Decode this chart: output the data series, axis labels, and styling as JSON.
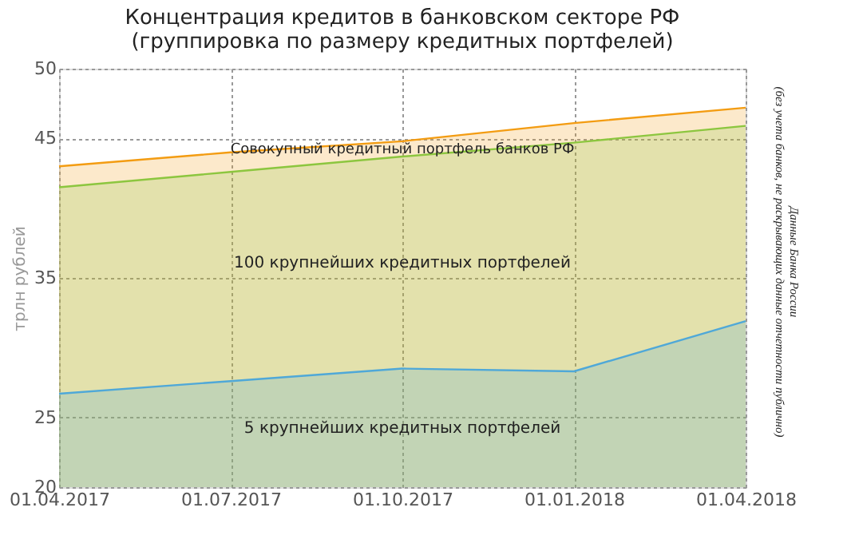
{
  "chart_data": {
    "type": "area",
    "title": "Концентрация кредитов в банковском секторе РФ\n(группировка по размеру кредитных портфелей)",
    "ylabel": "трлн рублей",
    "categories": [
      "01.04.2017",
      "01.07.2017",
      "01.10.2017",
      "01.01.2018",
      "01.04.2018"
    ],
    "series": [
      {
        "name": "Совокупный кредитный портфель банков РФ",
        "color": "#f39c12",
        "values": [
          43.0,
          44.0,
          44.8,
          46.1,
          47.2
        ]
      },
      {
        "name": "100 крупнейших кредитных портфелей",
        "color": "#8cc63f",
        "values": [
          41.5,
          42.6,
          43.7,
          44.7,
          45.9
        ]
      },
      {
        "name": "5 крупнейших кредитных портфелей",
        "color": "#4fa8d8",
        "values": [
          26.7,
          27.6,
          28.5,
          28.3,
          31.9
        ]
      }
    ],
    "ylim": [
      20,
      50
    ],
    "yticks": [
      20,
      25,
      35,
      45,
      50
    ],
    "grid": true,
    "legend": false,
    "annotations": [
      "Данные Банка России",
      "(без учета банков, не раскрывающих данные отчетности публично)"
    ]
  }
}
